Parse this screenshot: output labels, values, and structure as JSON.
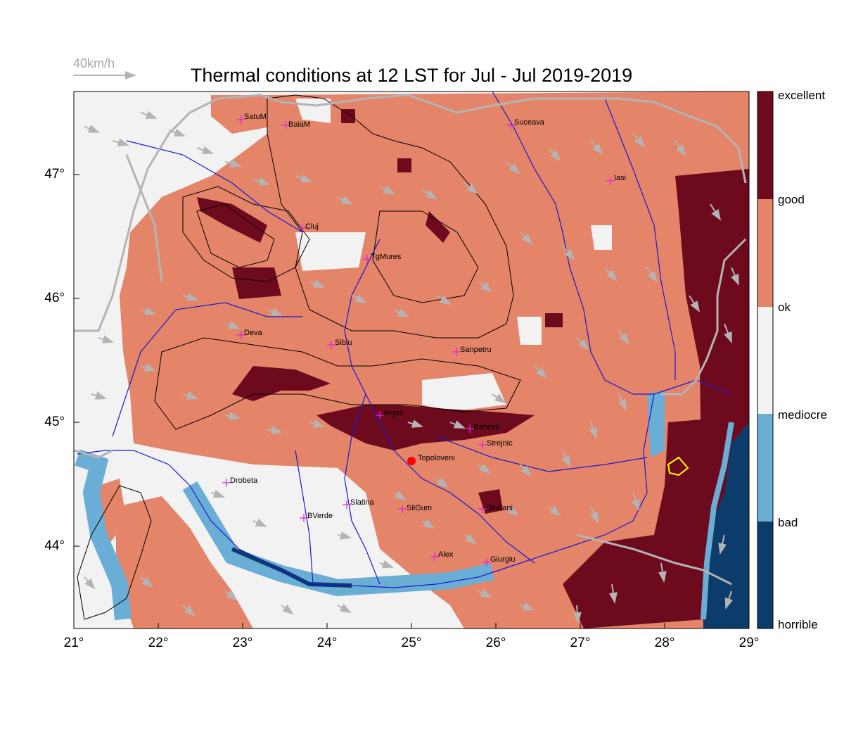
{
  "title": "Thermal conditions at 12 LST for Jul - Jul  2019-2019",
  "wind_scale_label": "40km/h",
  "legend": {
    "labels": [
      "excellent",
      "good",
      "ok",
      "mediocre",
      "bad",
      "horrible"
    ],
    "colors": [
      "#6e0a1e",
      "#e48468",
      "#f2f2f2",
      "#6aaed6",
      "#0c3c6c"
    ]
  },
  "axes": {
    "lat_labels": [
      "47°",
      "46°",
      "45°",
      "44°"
    ],
    "lon_labels": [
      "21°",
      "22°",
      "23°",
      "24°",
      "25°",
      "26°",
      "27°",
      "28°",
      "29°"
    ]
  },
  "cities": [
    {
      "name": "SatuM"
    },
    {
      "name": "BaiaM"
    },
    {
      "name": "Suceava"
    },
    {
      "name": "Iasi"
    },
    {
      "name": "Cluj"
    },
    {
      "name": "TgMures"
    },
    {
      "name": "Deva"
    },
    {
      "name": "Sibiu"
    },
    {
      "name": "Sanpetru"
    },
    {
      "name": "Arges"
    },
    {
      "name": "Banesti"
    },
    {
      "name": "Strejnic"
    },
    {
      "name": "Topoloveni"
    },
    {
      "name": "Drobeta"
    },
    {
      "name": "Slatina"
    },
    {
      "name": "SilGum"
    },
    {
      "name": "BVerde"
    },
    {
      "name": "Giudani"
    },
    {
      "name": "Alex"
    },
    {
      "name": "Giurgiu"
    }
  ],
  "highlight_site": "Topoloveni",
  "map_colors": {
    "land_good": "#e48468",
    "excellent": "#6e0a1e",
    "ok": "#f2f2f2",
    "bad": "#6aaed6",
    "horrible": "#0c3c6c",
    "river": "#1a1ad0",
    "border": "#b4b4b4",
    "wind": "#b4b4b4",
    "marker": "#e020e0",
    "site": "#ff0000"
  }
}
